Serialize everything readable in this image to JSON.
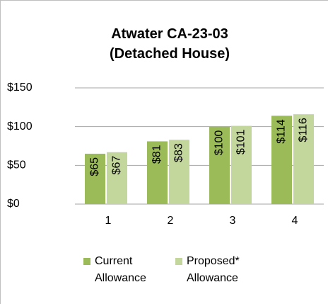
{
  "chart_data": {
    "type": "bar",
    "title": "Atwater CA-23-03\n(Detached House)",
    "categories": [
      "1",
      "2",
      "3",
      "4"
    ],
    "series": [
      {
        "name": "Current\nAllowance",
        "color": "#9bbb59",
        "values": [
          65,
          81,
          100,
          114
        ],
        "value_labels": [
          "$65",
          "$81",
          "$100",
          "$114"
        ]
      },
      {
        "name": "Proposed*\nAllowance",
        "color": "#c3d69b",
        "values": [
          67,
          83,
          101,
          116
        ],
        "value_labels": [
          "$67",
          "$83",
          "$101",
          "$116"
        ]
      }
    ],
    "ylim": [
      0,
      150
    ],
    "yticks": [
      {
        "value": 0,
        "label": "$0"
      },
      {
        "value": 50,
        "label": "$50"
      },
      {
        "value": 100,
        "label": "$100"
      },
      {
        "value": 150,
        "label": "$150"
      }
    ],
    "grid": true,
    "legend": "bottom"
  }
}
